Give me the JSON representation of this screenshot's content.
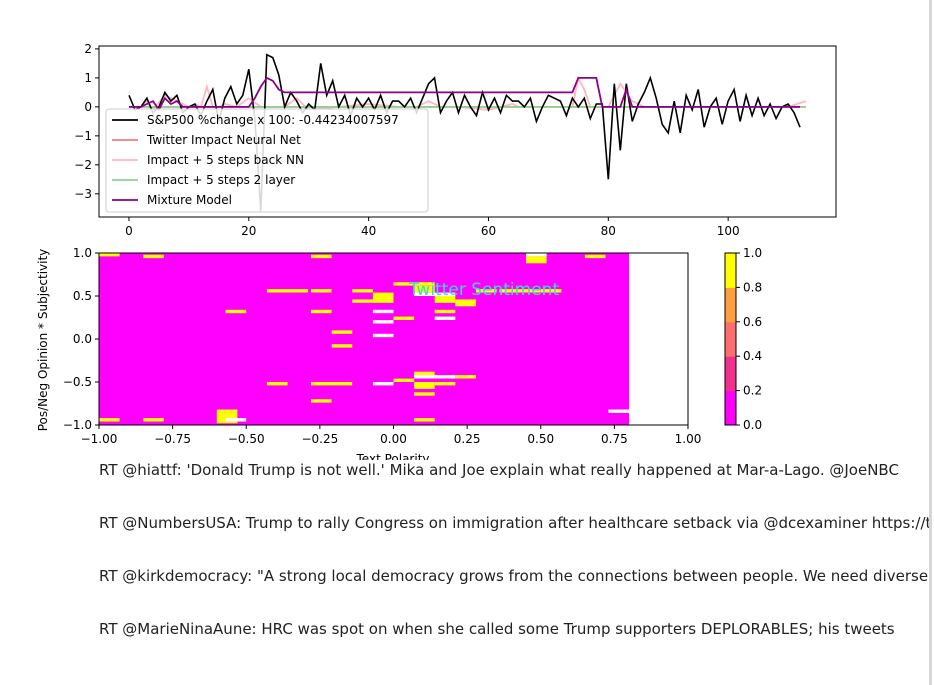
{
  "chart_data": [
    {
      "type": "line",
      "x_ticks": [
        0,
        20,
        40,
        60,
        80,
        100
      ],
      "y_ticks": [
        2,
        1,
        0,
        -1,
        -2,
        -3
      ],
      "xlim": [
        -5,
        118
      ],
      "ylim": [
        -3.8,
        2.1
      ],
      "grid": false,
      "legend_position": "lower-left",
      "colors": {
        "sp500": "#000000",
        "impact_nn": "#f08080",
        "impact_5back": "#ffb6c1",
        "impact_2layer": "#8fd18f",
        "mixture": "#8b008b"
      },
      "series": [
        {
          "name": "S&P500 %change x 100: -0.44234007597",
          "color": "#000000",
          "x": [
            0,
            1,
            2,
            3,
            4,
            5,
            6,
            7,
            8,
            9,
            10,
            11,
            12,
            13,
            14,
            15,
            16,
            17,
            18,
            19,
            20,
            21,
            22,
            23,
            24,
            25,
            26,
            27,
            28,
            29,
            30,
            31,
            32,
            33,
            34,
            35,
            36,
            37,
            38,
            39,
            40,
            41,
            42,
            43,
            44,
            45,
            46,
            47,
            48,
            49,
            50,
            51,
            52,
            53,
            54,
            55,
            56,
            57,
            58,
            59,
            60,
            61,
            62,
            63,
            64,
            65,
            66,
            67,
            68,
            69,
            70,
            71,
            72,
            73,
            74,
            75,
            76,
            77,
            78,
            79,
            80,
            81,
            82,
            83,
            84,
            85,
            86,
            87,
            88,
            89,
            90,
            91,
            92,
            93,
            94,
            95,
            96,
            97,
            98,
            99,
            100,
            101,
            102,
            103,
            104,
            105,
            106,
            107,
            108,
            109,
            110,
            111,
            112
          ],
          "values": [
            0.4,
            -0.1,
            0.0,
            0.3,
            -0.2,
            0.0,
            0.5,
            0.2,
            0.4,
            -0.2,
            0.0,
            0.1,
            -0.3,
            0.2,
            0.6,
            -0.5,
            0.3,
            0.7,
            0.1,
            0.4,
            1.3,
            -0.4,
            -3.6,
            1.8,
            1.7,
            1.1,
            0.0,
            0.5,
            0.2,
            -0.2,
            0.1,
            -0.1,
            1.5,
            0.4,
            0.9,
            0.0,
            0.4,
            -0.3,
            0.3,
            0.0,
            0.3,
            -0.1,
            0.4,
            -0.2,
            0.2,
            0.2,
            0.0,
            0.3,
            -0.2,
            0.3,
            0.8,
            1.0,
            -0.2,
            0.2,
            0.5,
            -0.2,
            0.4,
            0.0,
            -0.3,
            0.5,
            -0.1,
            0.3,
            -0.2,
            0.4,
            0.2,
            0.2,
            0.0,
            0.3,
            -0.5,
            0.0,
            0.4,
            0.3,
            0.2,
            -0.3,
            0.3,
            0.0,
            0.3,
            -0.4,
            0.1,
            0.1,
            -2.5,
            0.8,
            -1.5,
            0.8,
            -0.5,
            0.1,
            0.5,
            1.0,
            0.3,
            -0.6,
            -0.9,
            0.2,
            -0.9,
            0.4,
            -0.1,
            0.6,
            -0.7,
            0.0,
            0.3,
            -0.6,
            0.2,
            0.6,
            -0.5,
            0.4,
            -0.3,
            0.3,
            -0.3,
            0.1,
            -0.4,
            0.0,
            0.1,
            -0.2,
            -0.7
          ]
        },
        {
          "name": "Twitter Impact Neural Net",
          "color": "#f08080",
          "x": [
            0,
            10,
            20,
            40,
            60,
            80,
            100,
            113
          ],
          "values": [
            0.0,
            0.0,
            0.0,
            0.0,
            0.0,
            0.0,
            0.0,
            0.0
          ]
        },
        {
          "name": "Impact + 5 steps back NN",
          "color": "#ffb6c1",
          "x": [
            0,
            2,
            3,
            4,
            6,
            8,
            10,
            11,
            12,
            13,
            14,
            15,
            16,
            18,
            20,
            22,
            24,
            26,
            28,
            30,
            35,
            40,
            45,
            48,
            50,
            52,
            55,
            60,
            62,
            64,
            65,
            70,
            72,
            74,
            75,
            76,
            77,
            78,
            80,
            82,
            84,
            86,
            88,
            90,
            95,
            100,
            105,
            110,
            113
          ],
          "values": [
            0.0,
            0.0,
            0.2,
            -0.1,
            0.4,
            0.2,
            0.0,
            0.1,
            0.0,
            0.7,
            0.0,
            0.0,
            0.1,
            0.0,
            0.3,
            0.0,
            0.0,
            0.0,
            0.3,
            -0.1,
            0.0,
            0.1,
            0.0,
            0.0,
            0.2,
            0.0,
            0.0,
            -0.1,
            0.0,
            0.1,
            0.0,
            0.0,
            0.0,
            0.0,
            1.0,
            0.6,
            0.0,
            0.0,
            0.0,
            0.8,
            0.2,
            0.0,
            0.0,
            0.0,
            0.0,
            0.0,
            0.0,
            0.0,
            0.2
          ]
        },
        {
          "name": "Impact + 5 steps 2 layer",
          "color": "#8fd18f",
          "x": [
            0,
            20,
            40,
            60,
            80,
            100,
            113
          ],
          "values": [
            0.0,
            0.0,
            0.0,
            0.0,
            0.0,
            0.0,
            0.0
          ]
        },
        {
          "name": "Mixture Model",
          "color": "#8b008b",
          "x": [
            0,
            2,
            3,
            4,
            5,
            6,
            7,
            8,
            9,
            10,
            20,
            21,
            22,
            23,
            24,
            25,
            26,
            27,
            30,
            40,
            50,
            60,
            70,
            74,
            75,
            78,
            79,
            80,
            81,
            82,
            83,
            84,
            90,
            100,
            112
          ],
          "values": [
            0.0,
            0.0,
            0.1,
            0.2,
            -0.1,
            0.3,
            0.1,
            0.2,
            0.0,
            0.0,
            0.0,
            0.3,
            0.7,
            1.0,
            0.9,
            0.6,
            0.5,
            0.5,
            0.5,
            0.5,
            0.5,
            0.5,
            0.5,
            0.5,
            1.0,
            1.0,
            0.0,
            0.0,
            0.0,
            0.0,
            0.6,
            0.0,
            0.0,
            0.0,
            0.0
          ]
        }
      ]
    },
    {
      "type": "heatmap",
      "title": "Twitter Sentiment",
      "xlabel": "Text Polarity",
      "ylabel": "Pos/Neg Opinion * Subjectivity",
      "xlim": [
        -1.0,
        1.0
      ],
      "ylim": [
        -1.0,
        1.0
      ],
      "x_ticks": [
        "−1.00",
        "−0.75",
        "−0.50",
        "−0.25",
        "0.00",
        "0.25",
        "0.50",
        "0.75",
        "1.00"
      ],
      "y_ticks": [
        "1.0",
        "0.5",
        "0.0",
        "−0.5",
        "−1.0"
      ],
      "grid": false,
      "colorbar": {
        "range": [
          0.0,
          1.0
        ],
        "ticks": [
          "1.0",
          "0.8",
          "0.6",
          "0.4",
          "0.2",
          "0.0"
        ],
        "colors": [
          "#ff00ff",
          "#f0308c",
          "#ff6e6e",
          "#ffa040",
          "#ffff00"
        ]
      },
      "background_range_x": [
        -1.0,
        0.8
      ],
      "background_value": 0.0,
      "cells": [
        {
          "x": -1.0,
          "y": 1.0,
          "w": 0.07,
          "h": 0.04,
          "value": 1.0
        },
        {
          "x": -0.85,
          "y": 0.98,
          "w": 0.07,
          "h": 0.04,
          "value": 1.0
        },
        {
          "x": -0.28,
          "y": 0.98,
          "w": 0.07,
          "h": 0.04,
          "value": 1.0
        },
        {
          "x": 0.45,
          "y": 1.0,
          "w": 0.07,
          "h": 0.04,
          "value": -1
        },
        {
          "x": 0.45,
          "y": 0.96,
          "w": 0.07,
          "h": 0.08,
          "value": 1.0
        },
        {
          "x": 0.65,
          "y": 0.98,
          "w": 0.07,
          "h": 0.04,
          "value": 1.0
        },
        {
          "x": 0.0,
          "y": 0.66,
          "w": 0.14,
          "h": 0.04,
          "value": 1.0
        },
        {
          "x": -0.43,
          "y": 0.58,
          "w": 0.14,
          "h": 0.04,
          "value": 1.0
        },
        {
          "x": -0.28,
          "y": 0.58,
          "w": 0.07,
          "h": 0.04,
          "value": 1.0
        },
        {
          "x": -0.14,
          "y": 0.58,
          "w": 0.07,
          "h": 0.04,
          "value": 1.0
        },
        {
          "x": 0.07,
          "y": 0.62,
          "w": 0.07,
          "h": 0.08,
          "value": 1.0
        },
        {
          "x": 0.28,
          "y": 0.58,
          "w": 0.07,
          "h": 0.04,
          "value": 1.0
        },
        {
          "x": 0.36,
          "y": 0.58,
          "w": 0.14,
          "h": 0.04,
          "value": 1.0
        },
        {
          "x": 0.5,
          "y": 0.58,
          "w": 0.07,
          "h": 0.04,
          "value": 1.0
        },
        {
          "x": 0.07,
          "y": 0.54,
          "w": 0.07,
          "h": 0.04,
          "value": -1
        },
        {
          "x": 0.14,
          "y": 0.54,
          "w": 0.07,
          "h": 0.04,
          "value": -1
        },
        {
          "x": -0.07,
          "y": 0.54,
          "w": 0.07,
          "h": 0.12,
          "value": 1.0
        },
        {
          "x": 0.14,
          "y": 0.5,
          "w": 0.07,
          "h": 0.08,
          "value": 1.0
        },
        {
          "x": 0.21,
          "y": 0.46,
          "w": 0.07,
          "h": 0.08,
          "value": 1.0
        },
        {
          "x": -0.14,
          "y": 0.46,
          "w": 0.07,
          "h": 0.04,
          "value": 1.0
        },
        {
          "x": -0.57,
          "y": 0.34,
          "w": 0.07,
          "h": 0.04,
          "value": 1.0
        },
        {
          "x": -0.28,
          "y": 0.34,
          "w": 0.07,
          "h": 0.04,
          "value": 1.0
        },
        {
          "x": -0.07,
          "y": 0.34,
          "w": 0.07,
          "h": 0.04,
          "value": -1
        },
        {
          "x": 0.0,
          "y": 0.26,
          "w": 0.07,
          "h": 0.04,
          "value": 1.0
        },
        {
          "x": 0.14,
          "y": 0.34,
          "w": 0.07,
          "h": 0.04,
          "value": 1.0
        },
        {
          "x": 0.14,
          "y": 0.26,
          "w": 0.07,
          "h": 0.04,
          "value": -1
        },
        {
          "x": -0.07,
          "y": 0.22,
          "w": 0.07,
          "h": 0.04,
          "value": -1
        },
        {
          "x": -0.21,
          "y": 0.1,
          "w": 0.07,
          "h": 0.04,
          "value": 1.0
        },
        {
          "x": -0.07,
          "y": 0.06,
          "w": 0.07,
          "h": 0.04,
          "value": -1
        },
        {
          "x": -0.21,
          "y": -0.06,
          "w": 0.07,
          "h": 0.04,
          "value": 1.0
        },
        {
          "x": 0.07,
          "y": -0.38,
          "w": 0.07,
          "h": 0.04,
          "value": 1.0
        },
        {
          "x": 0.07,
          "y": -0.42,
          "w": 0.07,
          "h": 0.04,
          "value": -1
        },
        {
          "x": 0.14,
          "y": -0.42,
          "w": 0.07,
          "h": 0.04,
          "value": -1
        },
        {
          "x": 0.21,
          "y": -0.42,
          "w": 0.07,
          "h": 0.04,
          "value": 1.0
        },
        {
          "x": 0.0,
          "y": -0.46,
          "w": 0.07,
          "h": 0.04,
          "value": 1.0
        },
        {
          "x": -0.43,
          "y": -0.5,
          "w": 0.07,
          "h": 0.04,
          "value": 1.0
        },
        {
          "x": -0.28,
          "y": -0.5,
          "w": 0.14,
          "h": 0.04,
          "value": 1.0
        },
        {
          "x": -0.07,
          "y": -0.5,
          "w": 0.07,
          "h": 0.04,
          "value": -1
        },
        {
          "x": 0.07,
          "y": -0.5,
          "w": 0.07,
          "h": 0.08,
          "value": 1.0
        },
        {
          "x": 0.14,
          "y": -0.5,
          "w": 0.07,
          "h": 0.04,
          "value": 1.0
        },
        {
          "x": 0.07,
          "y": -0.62,
          "w": 0.07,
          "h": 0.04,
          "value": 1.0
        },
        {
          "x": -0.28,
          "y": -0.7,
          "w": 0.07,
          "h": 0.04,
          "value": 1.0
        },
        {
          "x": -0.6,
          "y": -0.82,
          "w": 0.07,
          "h": 0.04,
          "value": 1.0
        },
        {
          "x": -0.6,
          "y": -0.86,
          "w": 0.07,
          "h": 0.12,
          "value": 1.0
        },
        {
          "x": -0.57,
          "y": -0.92,
          "w": 0.07,
          "h": 0.04,
          "value": -1
        },
        {
          "x": 0.73,
          "y": -0.82,
          "w": 0.07,
          "h": 0.04,
          "value": -1
        },
        {
          "x": -1.0,
          "y": -0.92,
          "w": 0.07,
          "h": 0.04,
          "value": 1.0
        },
        {
          "x": -0.85,
          "y": -0.92,
          "w": 0.07,
          "h": 0.04,
          "value": 1.0
        },
        {
          "x": 0.07,
          "y": -0.92,
          "w": 0.07,
          "h": 0.04,
          "value": 1.0
        }
      ]
    }
  ],
  "tweets": [
    "RT @hiattf: 'Donald Trump is not well.' Mika and Joe explain what really happened at Mar-a-Lago. @JoeNBC",
    "RT @NumbersUSA: Trump to rally Congress on immigration after healthcare setback via @dcexaminer https://t.co",
    "RT @kirkdemocracy: \"A strong local democracy grows from the connections between people. We need diverse",
    "RT @MarieNinaAune: HRC was spot on when she called some Trump supporters DEPLORABLES; his tweets"
  ]
}
